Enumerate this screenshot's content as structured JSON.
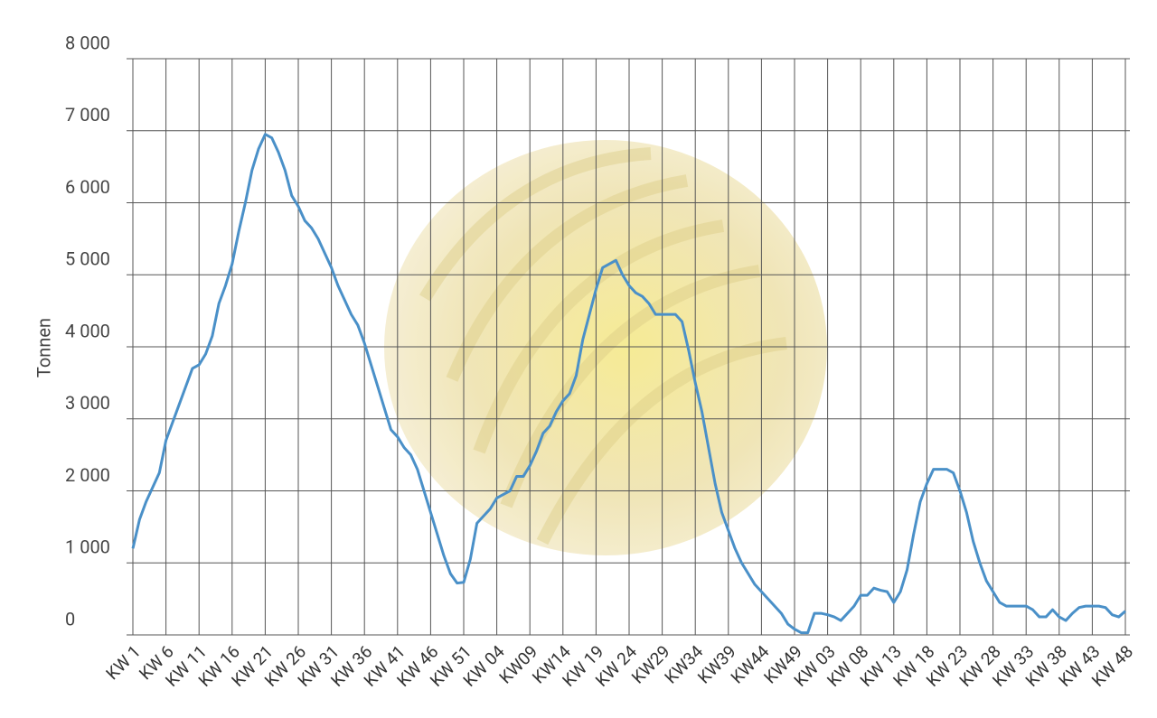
{
  "chart_data": {
    "type": "line",
    "y_label": "Tonnen",
    "color": "#4a90c8",
    "grid": true,
    "ylim": [
      0,
      8000
    ],
    "yticks": [
      {
        "value": 0,
        "label": "0"
      },
      {
        "value": 1000,
        "label": "1 000"
      },
      {
        "value": 2000,
        "label": "2 000"
      },
      {
        "value": 3000,
        "label": "3 000"
      },
      {
        "value": 4000,
        "label": "4 000"
      },
      {
        "value": 5000,
        "label": "5 000"
      },
      {
        "value": 6000,
        "label": "6 000"
      },
      {
        "value": 7000,
        "label": "7 000"
      },
      {
        "value": 8000,
        "label": "8 000"
      }
    ],
    "categories": [
      "KW 1",
      null,
      null,
      null,
      null,
      "KW 6",
      null,
      null,
      null,
      null,
      "KW 11",
      null,
      null,
      null,
      null,
      "KW 16",
      null,
      null,
      null,
      null,
      "KW 21",
      null,
      null,
      null,
      null,
      "KW 26",
      null,
      null,
      null,
      null,
      "KW 31",
      null,
      null,
      null,
      null,
      "KW 36",
      null,
      null,
      null,
      null,
      "KW 41",
      null,
      null,
      null,
      null,
      "KW 46",
      null,
      null,
      null,
      null,
      "KW 51",
      null,
      null,
      null,
      null,
      "KW 04",
      null,
      null,
      null,
      null,
      "KW09",
      null,
      null,
      null,
      null,
      "KW14",
      null,
      null,
      null,
      null,
      "KW 19",
      null,
      null,
      null,
      null,
      "KW 24",
      null,
      null,
      null,
      null,
      "KW29",
      null,
      null,
      null,
      null,
      "KW34",
      null,
      null,
      null,
      null,
      "KW39",
      null,
      null,
      null,
      null,
      "KW44",
      null,
      null,
      null,
      null,
      "KW49",
      null,
      null,
      null,
      null,
      "KW 03",
      null,
      null,
      null,
      null,
      "KW 08",
      null,
      null,
      null,
      null,
      "KW 13",
      null,
      null,
      null,
      null,
      "KW 18",
      null,
      null,
      null,
      null,
      "KW 23",
      null,
      null,
      null,
      null,
      "KW 28",
      null,
      null,
      null,
      null,
      "KW 33",
      null,
      null,
      null,
      null,
      "KW 38",
      null,
      null,
      null,
      null,
      "KW 43",
      null,
      null,
      null,
      null,
      "KW 48"
    ],
    "values": [
      1200,
      1600,
      1850,
      2050,
      2250,
      2700,
      2950,
      3200,
      3450,
      3700,
      3750,
      3900,
      4150,
      4600,
      4850,
      5150,
      5600,
      6000,
      6450,
      6750,
      6950,
      6900,
      6700,
      6450,
      6100,
      5950,
      5750,
      5650,
      5500,
      5300,
      5100,
      4850,
      4650,
      4450,
      4300,
      4050,
      3750,
      3450,
      3150,
      2850,
      2750,
      2600,
      2500,
      2300,
      2000,
      1700,
      1400,
      1100,
      850,
      720,
      730,
      1050,
      1550,
      1650,
      1750,
      1900,
      1950,
      2000,
      2200,
      2200,
      2350,
      2550,
      2800,
      2900,
      3100,
      3250,
      3350,
      3600,
      4100,
      4450,
      4800,
      5100,
      5150,
      5200,
      5000,
      4850,
      4750,
      4700,
      4600,
      4450,
      4450,
      4450,
      4450,
      4350,
      3950,
      3500,
      3100,
      2600,
      2100,
      1700,
      1450,
      1200,
      1000,
      850,
      700,
      600,
      500,
      400,
      300,
      150,
      80,
      30,
      30,
      300,
      300,
      280,
      250,
      200,
      300,
      400,
      550,
      550,
      650,
      620,
      600,
      450,
      600,
      900,
      1400,
      1850,
      2100,
      2300,
      2300,
      2300,
      2250,
      2000,
      1700,
      1300,
      1000,
      750,
      600,
      450,
      400,
      400,
      400,
      400,
      350,
      250,
      250,
      350,
      250,
      200,
      300,
      380,
      400,
      400,
      400,
      380,
      280,
      250,
      330
    ]
  }
}
